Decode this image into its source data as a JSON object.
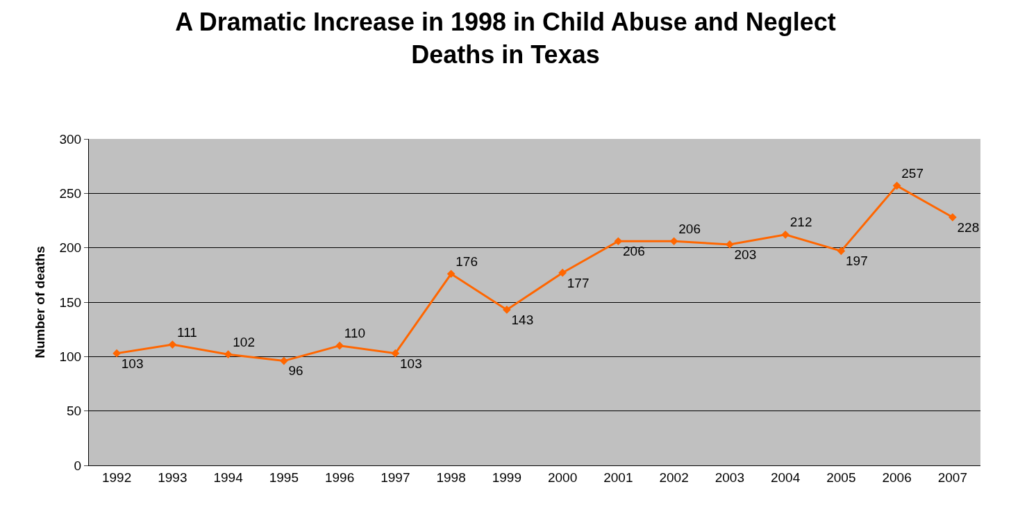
{
  "chart_data": {
    "type": "line",
    "title": "A Dramatic Increase in 1998 in Child Abuse and Neglect Deaths in Texas",
    "ylabel": "Number of deaths",
    "categories": [
      "1992",
      "1993",
      "1994",
      "1995",
      "1996",
      "1997",
      "1998",
      "1999",
      "2000",
      "2001",
      "2002",
      "2003",
      "2004",
      "2005",
      "2006",
      "2007"
    ],
    "series": [
      {
        "color": "#ff6600",
        "values": [
          103,
          111,
          102,
          96,
          110,
          103,
          176,
          143,
          177,
          206,
          206,
          203,
          212,
          197,
          257,
          228
        ]
      }
    ],
    "ylim": [
      0,
      300
    ],
    "yticks": [
      0,
      50,
      100,
      150,
      200,
      250,
      300
    ],
    "grid": "y",
    "marker": "diamond",
    "line_style": "solid",
    "data_labels": true
  }
}
